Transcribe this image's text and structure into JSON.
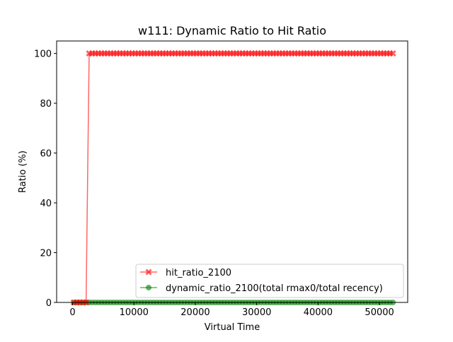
{
  "chart_data": {
    "type": "line",
    "title": "w111: Dynamic Ratio to Hit Ratio",
    "xlabel": "Virtual Time",
    "ylabel": "Ratio (%)",
    "xlim": [
      -2600,
      54600
    ],
    "ylim": [
      0,
      105
    ],
    "xticks": [
      0,
      10000,
      20000,
      30000,
      40000,
      50000
    ],
    "xtick_labels": [
      "0",
      "10000",
      "20000",
      "30000",
      "40000",
      "50000"
    ],
    "yticks": [
      0,
      20,
      40,
      60,
      80,
      100
    ],
    "ytick_labels": [
      "0",
      "20",
      "40",
      "60",
      "80",
      "100"
    ],
    "grid": false,
    "legend_position": "lower-right",
    "x_start": 200,
    "x_step": 500,
    "x_end": 52200,
    "series": [
      {
        "name": "hit_ratio_2100",
        "color": "#ff0000",
        "marker": "x-filled",
        "description": "0 from 200 through 2200, then 100 from 2700 through 52200",
        "step_at": 2700,
        "low": 0,
        "high": 100
      },
      {
        "name": "dynamic_ratio_2100(total rmax0/total recency)",
        "color": "#008000",
        "marker": "circle",
        "description": "0 throughout",
        "constant": 0
      }
    ]
  }
}
